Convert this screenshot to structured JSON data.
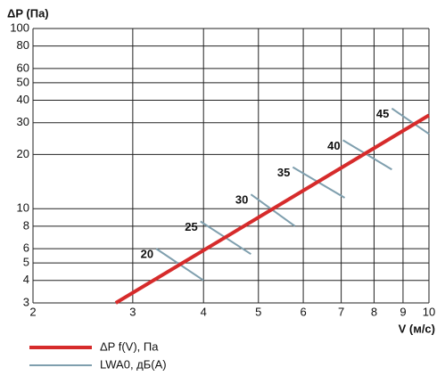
{
  "chart_data": {
    "type": "line",
    "x_label": "V (м/с)",
    "y_label": "ΔP (Па)",
    "log_x": true,
    "log_y": true,
    "grid": true,
    "xlim": [
      2,
      10
    ],
    "xticks": [
      2,
      3,
      4,
      5,
      6,
      7,
      8,
      9,
      10
    ],
    "ylim": [
      3,
      100
    ],
    "yticks": [
      3,
      4,
      5,
      6,
      8,
      10,
      20,
      30,
      40,
      50,
      60,
      80,
      100
    ],
    "series": [
      {
        "name": "ΔP f(V), Па",
        "color": "#d62b2b",
        "x": [
          2.8,
          10
        ],
        "values": [
          3,
          33
        ]
      }
    ],
    "noise_name": "LWA0, дБ(А)",
    "noise_color": "#7f9fae",
    "noise_lines": [
      {
        "level": 20,
        "x": [
          3.3,
          4
        ],
        "values": [
          6,
          4
        ]
      },
      {
        "level": 25,
        "x": [
          3.95,
          4.85
        ],
        "values": [
          8.5,
          5.6
        ]
      },
      {
        "level": 30,
        "x": [
          4.85,
          5.8
        ],
        "values": [
          12,
          8
        ]
      },
      {
        "level": 35,
        "x": [
          5.75,
          7.1
        ],
        "values": [
          17,
          11.5
        ]
      },
      {
        "level": 40,
        "x": [
          7.05,
          8.6
        ],
        "values": [
          24,
          16.5
        ]
      },
      {
        "level": 45,
        "x": [
          8.6,
          10
        ],
        "values": [
          36,
          26
        ]
      }
    ]
  }
}
